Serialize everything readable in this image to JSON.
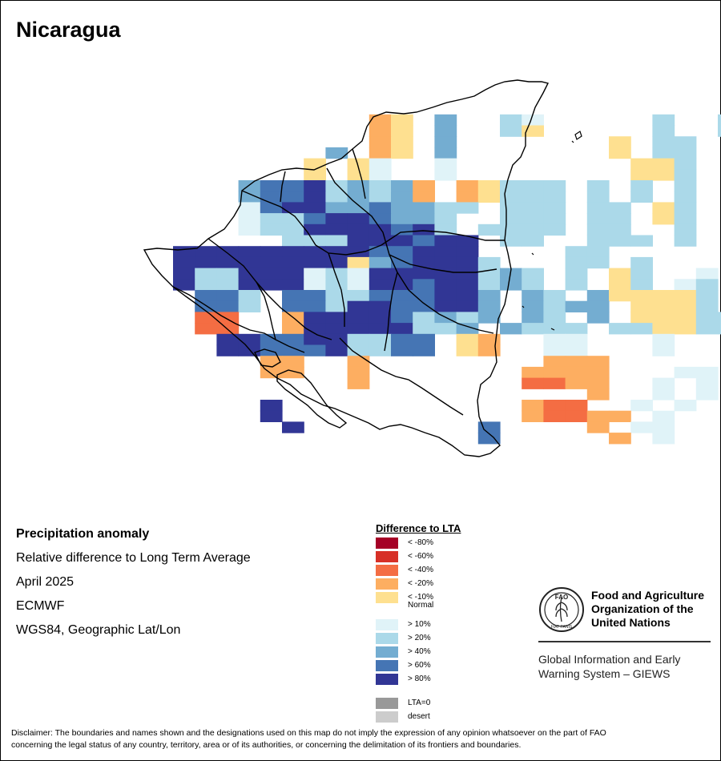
{
  "title": "Nicaragua",
  "info": {
    "heading": "Precipitation anomaly",
    "subtitle": "Relative difference to Long Term Average",
    "period": "April 2025",
    "source": "ECMWF",
    "projection": "WGS84, Geographic Lat/Lon"
  },
  "legend": {
    "title": "Difference to LTA",
    "items": [
      {
        "label": "< -80%",
        "color": "#A50026"
      },
      {
        "label": "< -60%",
        "color": "#D73027"
      },
      {
        "label": "< -40%",
        "color": "#F46D43"
      },
      {
        "label": "< -20%",
        "color": "#FDAE61"
      },
      {
        "label": "< -10%",
        "color": "#FEE090"
      },
      {
        "label": "Normal",
        "color": "#FFFFFF"
      },
      {
        "label": "> 10%",
        "color": "#E0F3F8"
      },
      {
        "label": "> 20%",
        "color": "#ABD9E9"
      },
      {
        "label": "> 40%",
        "color": "#74ADD1"
      },
      {
        "label": "> 60%",
        "color": "#4575B4"
      },
      {
        "label": "> 80%",
        "color": "#313695"
      }
    ],
    "extra": [
      {
        "label": "LTA=0",
        "color": "#999999"
      },
      {
        "label": "desert",
        "color": "#CCCCCC"
      }
    ]
  },
  "organization": {
    "name_line1": "Food and Agriculture",
    "name_line2": "Organization of the",
    "name_line3": "United Nations",
    "logo_text": "FAO",
    "logo_motto": "FIAT PANIS",
    "system_line1": "Global Information and Early",
    "system_line2": "Warning System – GIEWS"
  },
  "disclaimer_line1": "Disclaimer: The boundaries and names shown and the designations used on this map do not imply the expression of any opinion whatsoever on the part of FAO",
  "disclaimer_line2": "concerning the legal status of any country, territory, area or of its authorities, or concerning the delimitation of its frontiers and boundaries.",
  "grid": {
    "colors": {
      "A": "#F46D43",
      "B": "#FDAE61",
      "C": "#FEE090",
      "D": "#E0F3F8",
      "E": "#ABD9E9",
      "F": "#74ADD1",
      "G": "#4575B4",
      "H": "#313695"
    },
    "rows": [
      "...........................E..",
      "...........................E..",
      "..........................CE..",
      "..........................EE..",
      ".........BC.F..ED.....E..EEG..",
      ".........BC.F..EC.....E..EEE..",
      ".........BC.F.......C.EE....E.",
      ".......F.BC.F.......C.EE....E.",
      "......C.CD..D........CCE......",
      "......C.CD..D........CCE......",
      "...FGGHEFEFB.BCEEE.E.E.E......",
      "...FGGHEFEFB.BCEEE.E.E.E......",
      "...DGHHFFGFFEE.EEE.EE.CE......",
      "...DEEGHHGFFE..EEE.EE.CE.....E",
      "...DEEHHHHGHE.EEEE.EE..E.....E",
      ".....EEEHHHGHH.EE..EEE.E......",
      "HHHHHHHHHGGHHH....EE..........",
      "HHHHHHHHCFGHHHE...EE.E.....D..",
      "HEEHHHDEDHHHHHEFE.E.CE..D.....",
      "HEEHHHDEDHHGHHEFE.E.CE.DE.D...",
      ".GGE.GGEEGGGHHF.FE.FCCCCE.E...",
      ".GGE.GGEHHGGHHF.FEFF.CCCE.E...",
      ".AA..BHHHHGEFEF.FE.F.CCCEE....",
      ".AA..BHHHHHEEF.FEEE.EECCEE....",
      "..HHGGHHEEGG.CB..DD...D...E...",
      "..HHGGGHEEGG.CB..DD...D...G...",
      "....BB..B........BBB......G...",
      "....BB..B.......BBBB...DD.G...",
      "........B.......AABB..D.D.....",
      "...................B..D.D.....",
      "....H...........BAA..D.D......",
      "....H...........BAABB.D.......",
      ".....H........G....B.DD.......",
      "..............G.....B.D......."
    ]
  }
}
